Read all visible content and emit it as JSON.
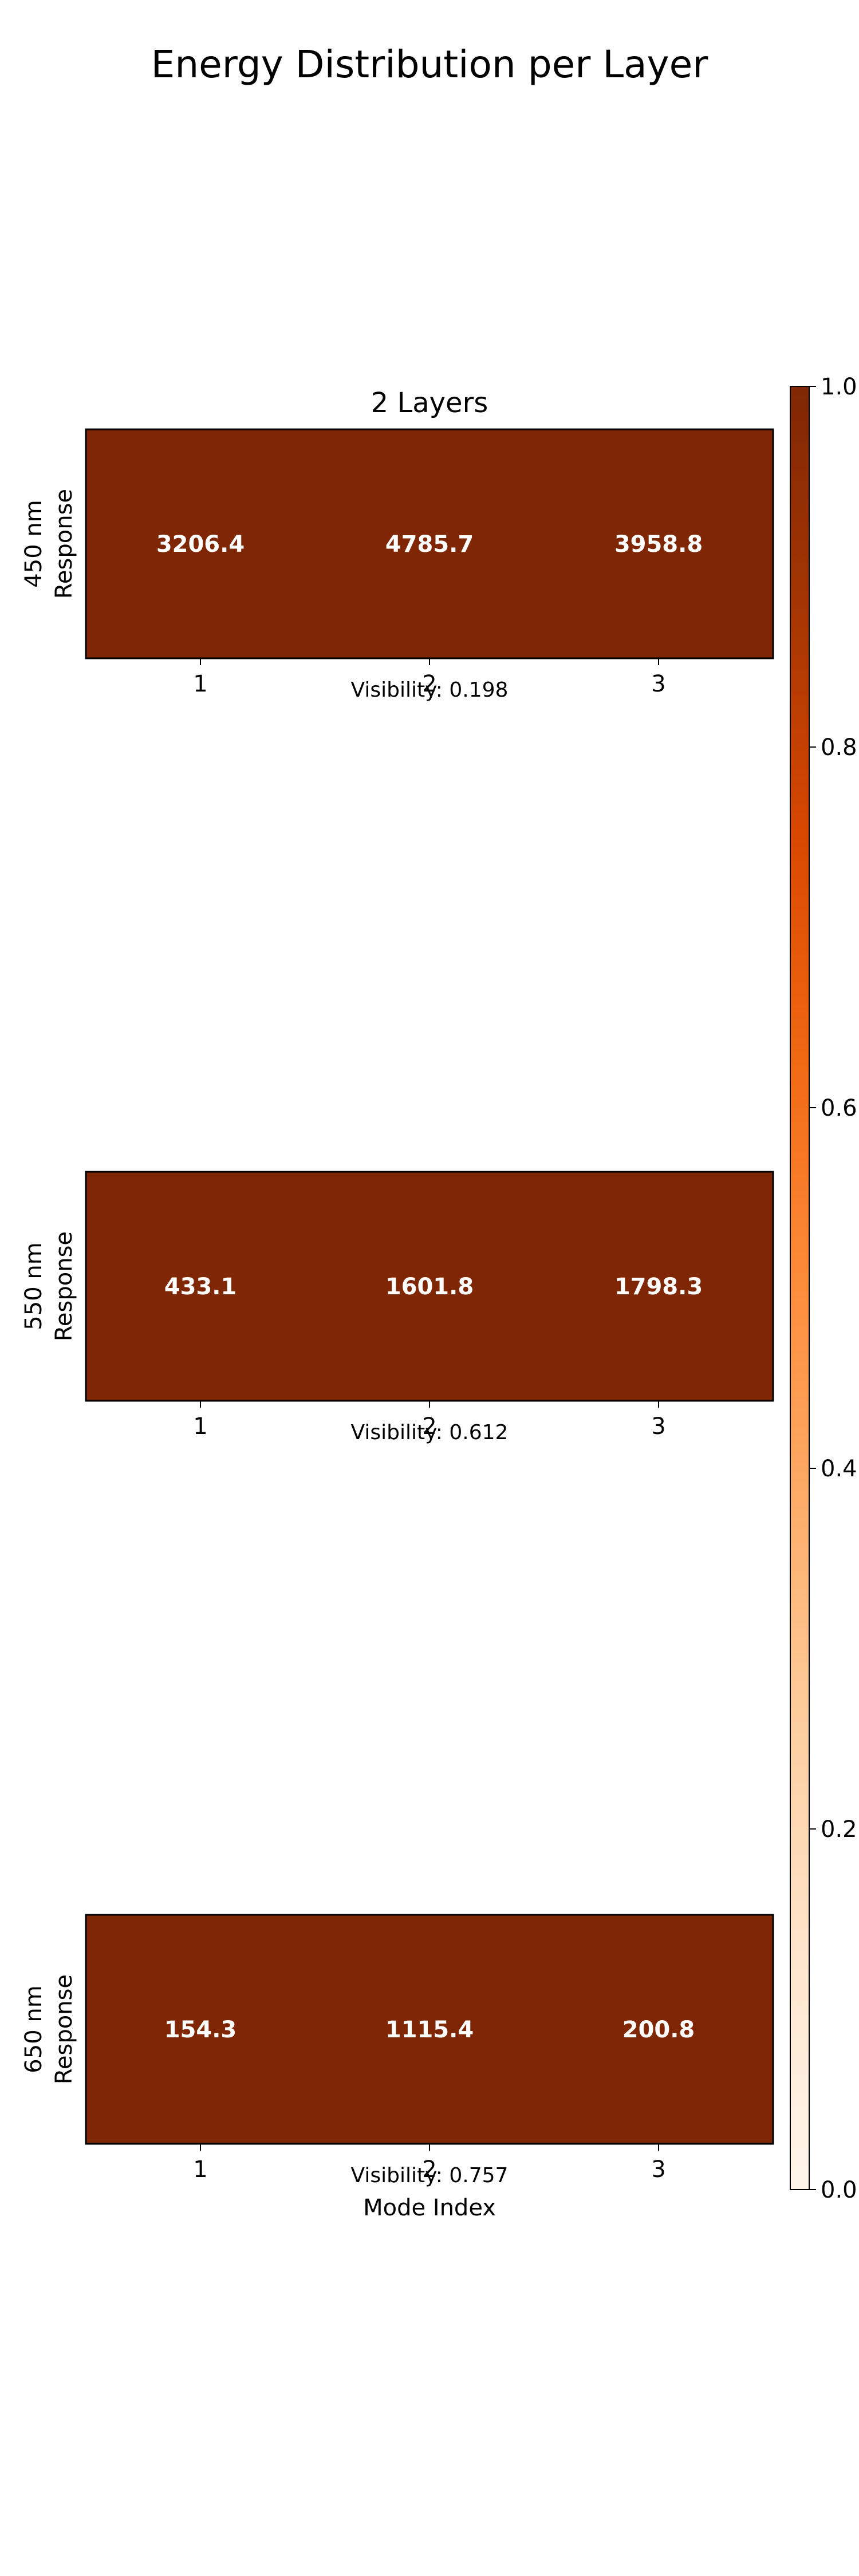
{
  "chart_data": {
    "type": "heatmap",
    "title": "Energy Distribution per Layer",
    "panel_title": "2 Layers",
    "xlabel": "Mode Index",
    "x": [
      "1",
      "2",
      "3"
    ],
    "colormap": "Oranges",
    "colorbar": {
      "range": [
        0.0,
        1.0
      ],
      "ticks": [
        "0.0",
        "0.2",
        "0.4",
        "0.6",
        "0.8",
        "1.0"
      ]
    },
    "rows": [
      {
        "ylabel_line1": "450 nm",
        "ylabel_line2": "Response",
        "values": [
          3206.4,
          4785.7,
          3958.8
        ],
        "labels": [
          "3206.4",
          "4785.7",
          "3958.8"
        ],
        "visibility_label": "Visibility: 0.198"
      },
      {
        "ylabel_line1": "550 nm",
        "ylabel_line2": "Response",
        "values": [
          433.1,
          1601.8,
          1798.3
        ],
        "labels": [
          "433.1",
          "1601.8",
          "1798.3"
        ],
        "visibility_label": "Visibility: 0.612"
      },
      {
        "ylabel_line1": "650 nm",
        "ylabel_line2": "Response",
        "values": [
          154.3,
          1115.4,
          200.8
        ],
        "labels": [
          "154.3",
          "1115.4",
          "200.8"
        ],
        "visibility_label": "Visibility: 0.757"
      }
    ],
    "cell_color": "#7f2704",
    "grid": false
  }
}
